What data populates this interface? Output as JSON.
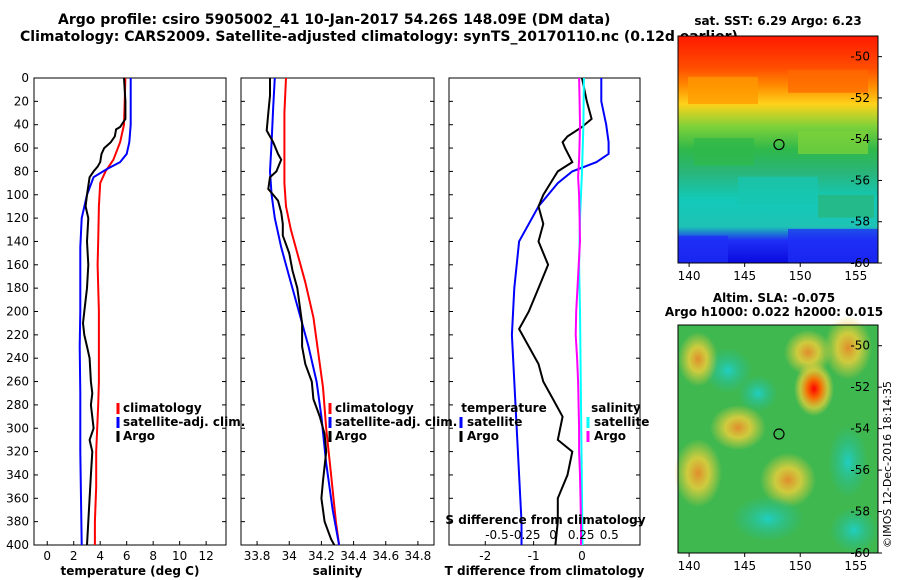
{
  "titles": {
    "line1": "Argo profile: csiro 5905002_41 10-Jan-2017 54.26S 148.09E (DM data)",
    "line2": "Climatology: CARS2009. Satellite-adjusted climatology: synTS_20170110.nc (0.12d earlier)"
  },
  "colors": {
    "climatology": "#ff0000",
    "satellite": "#0000ff",
    "argo": "#000000",
    "sat_diff": "#00ffff",
    "argo_diff": "#ff00ff"
  },
  "chart_data": [
    {
      "type": "line",
      "id": "temperature",
      "xlabel": "temperature (deg C)",
      "xlim": [
        -1,
        13.5
      ],
      "xticks": [
        0,
        2,
        4,
        6,
        8,
        10,
        12
      ],
      "ylim": [
        400,
        0
      ],
      "yticks": [
        0,
        20,
        40,
        60,
        80,
        100,
        120,
        140,
        160,
        180,
        200,
        220,
        240,
        260,
        280,
        300,
        320,
        340,
        360,
        380,
        400
      ],
      "legend": [
        "climatology",
        "satellite-adj. clim.",
        "Argo"
      ],
      "series": [
        {
          "name": "climatology",
          "color": "#ff0000",
          "points": [
            [
              5.9,
              0
            ],
            [
              5.85,
              20
            ],
            [
              5.8,
              40
            ],
            [
              5.5,
              55
            ],
            [
              5.0,
              70
            ],
            [
              4.4,
              80
            ],
            [
              4.0,
              90
            ],
            [
              3.9,
              110
            ],
            [
              3.85,
              140
            ],
            [
              3.8,
              160
            ],
            [
              3.9,
              200
            ],
            [
              3.9,
              260
            ],
            [
              3.85,
              280
            ],
            [
              3.7,
              320
            ],
            [
              3.7,
              350
            ],
            [
              3.6,
              380
            ],
            [
              3.6,
              400
            ]
          ]
        },
        {
          "name": "satellite-adj. clim.",
          "color": "#0000ff",
          "points": [
            [
              6.3,
              0
            ],
            [
              6.3,
              20
            ],
            [
              6.3,
              40
            ],
            [
              6.2,
              55
            ],
            [
              6.0,
              65
            ],
            [
              5.5,
              72
            ],
            [
              4.5,
              78
            ],
            [
              3.5,
              85
            ],
            [
              3.0,
              100
            ],
            [
              2.6,
              120
            ],
            [
              2.5,
              145
            ],
            [
              2.5,
              200
            ],
            [
              2.45,
              230
            ],
            [
              2.5,
              270
            ],
            [
              2.5,
              320
            ],
            [
              2.55,
              360
            ],
            [
              2.6,
              400
            ]
          ]
        },
        {
          "name": "Argo",
          "color": "#000000",
          "points": [
            [
              5.8,
              0
            ],
            [
              5.9,
              20
            ],
            [
              5.9,
              35
            ],
            [
              5.5,
              42
            ],
            [
              5.2,
              44
            ],
            [
              5.1,
              50
            ],
            [
              4.8,
              55
            ],
            [
              4.3,
              60
            ],
            [
              4.1,
              65
            ],
            [
              4.0,
              72
            ],
            [
              3.8,
              76
            ],
            [
              3.5,
              80
            ],
            [
              3.2,
              85
            ],
            [
              3.0,
              100
            ],
            [
              2.9,
              110
            ],
            [
              3.1,
              120
            ],
            [
              3.0,
              140
            ],
            [
              3.1,
              160
            ],
            [
              3.0,
              180
            ],
            [
              2.8,
              200
            ],
            [
              2.7,
              210
            ],
            [
              2.8,
              220
            ],
            [
              3.0,
              230
            ],
            [
              3.2,
              240
            ],
            [
              3.3,
              260
            ],
            [
              3.4,
              270
            ],
            [
              3.3,
              280
            ],
            [
              3.5,
              300
            ],
            [
              3.2,
              310
            ],
            [
              3.4,
              320
            ],
            [
              3.3,
              340
            ],
            [
              3.2,
              360
            ],
            [
              3.1,
              380
            ],
            [
              3.0,
              400
            ]
          ]
        }
      ]
    },
    {
      "type": "line",
      "id": "salinity",
      "xlabel": "salinity",
      "xlim": [
        33.7,
        34.9
      ],
      "xticks": [
        33.8,
        34,
        34.2,
        34.4,
        34.6,
        34.8
      ],
      "ylim": [
        400,
        0
      ],
      "legend": [
        "climatology",
        "satellite-adj. clim.",
        "Argo"
      ],
      "series": [
        {
          "name": "climatology",
          "color": "#ff0000",
          "points": [
            [
              33.98,
              0
            ],
            [
              33.97,
              30
            ],
            [
              33.97,
              60
            ],
            [
              33.97,
              90
            ],
            [
              33.98,
              110
            ],
            [
              34.01,
              130
            ],
            [
              34.05,
              150
            ],
            [
              34.1,
              175
            ],
            [
              34.15,
              205
            ],
            [
              34.18,
              235
            ],
            [
              34.21,
              265
            ],
            [
              34.23,
              300
            ],
            [
              34.26,
              340
            ],
            [
              34.29,
              380
            ],
            [
              34.31,
              400
            ]
          ]
        },
        {
          "name": "satellite-adj. clim.",
          "color": "#0000ff",
          "points": [
            [
              33.91,
              0
            ],
            [
              33.9,
              25
            ],
            [
              33.89,
              55
            ],
            [
              33.88,
              80
            ],
            [
              33.89,
              100
            ],
            [
              33.91,
              120
            ],
            [
              33.95,
              145
            ],
            [
              34.0,
              170
            ],
            [
              34.06,
              200
            ],
            [
              34.12,
              230
            ],
            [
              34.17,
              260
            ],
            [
              34.2,
              290
            ],
            [
              34.23,
              330
            ],
            [
              34.27,
              370
            ],
            [
              34.31,
              400
            ]
          ]
        },
        {
          "name": "Argo",
          "color": "#000000",
          "points": [
            [
              33.88,
              0
            ],
            [
              33.88,
              15
            ],
            [
              33.87,
              30
            ],
            [
              33.86,
              45
            ],
            [
              33.9,
              55
            ],
            [
              33.93,
              65
            ],
            [
              33.95,
              70
            ],
            [
              33.92,
              80
            ],
            [
              33.88,
              85
            ],
            [
              33.87,
              95
            ],
            [
              33.93,
              105
            ],
            [
              33.95,
              115
            ],
            [
              33.96,
              125
            ],
            [
              33.96,
              135
            ],
            [
              34.0,
              150
            ],
            [
              34.02,
              165
            ],
            [
              34.05,
              180
            ],
            [
              34.06,
              190
            ],
            [
              34.08,
              210
            ],
            [
              34.08,
              230
            ],
            [
              34.1,
              245
            ],
            [
              34.14,
              260
            ],
            [
              34.15,
              275
            ],
            [
              34.19,
              290
            ],
            [
              34.22,
              305
            ],
            [
              34.23,
              320
            ],
            [
              34.21,
              345
            ],
            [
              34.2,
              360
            ],
            [
              34.22,
              380
            ],
            [
              34.26,
              395
            ],
            [
              34.28,
              400
            ]
          ]
        }
      ]
    },
    {
      "type": "line",
      "id": "difference",
      "xlabel": "T difference from climatology",
      "xlabel_top": "S difference from climatology",
      "xlim": [
        -2.75,
        1.2
      ],
      "xticks": [
        -2,
        -1,
        0
      ],
      "xticks_top": [
        -0.5,
        -0.25,
        0,
        0.25,
        0.5
      ],
      "ylim": [
        400,
        0
      ],
      "legend_left_title": "temperature",
      "legend_left": [
        "satellite",
        "Argo"
      ],
      "legend_right_title": "salinity",
      "legend_right": [
        "satellite",
        "Argo"
      ],
      "series": [
        {
          "name": "T satellite",
          "color": "#0000ff",
          "points": [
            [
              0.4,
              0
            ],
            [
              0.4,
              20
            ],
            [
              0.5,
              40
            ],
            [
              0.55,
              55
            ],
            [
              0.55,
              65
            ],
            [
              0.3,
              72
            ],
            [
              -0.2,
              80
            ],
            [
              -0.5,
              90
            ],
            [
              -0.9,
              110
            ],
            [
              -1.3,
              140
            ],
            [
              -1.4,
              180
            ],
            [
              -1.45,
              220
            ],
            [
              -1.4,
              260
            ],
            [
              -1.35,
              300
            ],
            [
              -1.3,
              340
            ],
            [
              -1.25,
              380
            ],
            [
              -1.25,
              400
            ]
          ]
        },
        {
          "name": "T Argo",
          "color": "#000000",
          "points": [
            [
              0.0,
              0
            ],
            [
              0.1,
              20
            ],
            [
              0.2,
              35
            ],
            [
              0.0,
              42
            ],
            [
              -0.3,
              50
            ],
            [
              -0.4,
              55
            ],
            [
              -0.35,
              60
            ],
            [
              -0.2,
              72
            ],
            [
              -0.5,
              80
            ],
            [
              -0.65,
              90
            ],
            [
              -0.8,
              100
            ],
            [
              -0.9,
              110
            ],
            [
              -0.8,
              125
            ],
            [
              -0.9,
              140
            ],
            [
              -0.7,
              160
            ],
            [
              -0.9,
              180
            ],
            [
              -1.1,
              200
            ],
            [
              -1.3,
              215
            ],
            [
              -1.1,
              230
            ],
            [
              -0.9,
              245
            ],
            [
              -0.8,
              260
            ],
            [
              -0.6,
              275
            ],
            [
              -0.4,
              290
            ],
            [
              -0.5,
              310
            ],
            [
              -0.2,
              320
            ],
            [
              -0.3,
              340
            ],
            [
              -0.5,
              360
            ],
            [
              -0.5,
              380
            ],
            [
              -0.55,
              400
            ]
          ]
        },
        {
          "name": "S satellite",
          "color": "#00ffff",
          "points": [
            [
              0.04,
              0
            ],
            [
              0.03,
              40
            ],
            [
              0.0,
              80
            ],
            [
              -0.04,
              120
            ],
            [
              -0.06,
              160
            ],
            [
              -0.04,
              200
            ],
            [
              -0.03,
              240
            ],
            [
              -0.02,
              280
            ],
            [
              -0.01,
              320
            ],
            [
              0.0,
              360
            ],
            [
              0.01,
              400
            ]
          ]
        },
        {
          "name": "S Argo",
          "color": "#ff00ff",
          "points": [
            [
              -0.06,
              0
            ],
            [
              -0.05,
              20
            ],
            [
              -0.04,
              40
            ],
            [
              -0.05,
              55
            ],
            [
              -0.06,
              70
            ],
            [
              -0.08,
              85
            ],
            [
              -0.06,
              100
            ],
            [
              -0.05,
              120
            ],
            [
              -0.04,
              140
            ],
            [
              -0.08,
              170
            ],
            [
              -0.12,
              200
            ],
            [
              -0.13,
              220
            ],
            [
              -0.1,
              240
            ],
            [
              -0.08,
              260
            ],
            [
              -0.07,
              280
            ],
            [
              -0.06,
              300
            ],
            [
              -0.06,
              320
            ],
            [
              -0.04,
              340
            ],
            [
              -0.03,
              360
            ],
            [
              -0.02,
              380
            ],
            [
              -0.02,
              400
            ]
          ]
        }
      ]
    },
    {
      "type": "heatmap",
      "id": "sst_map",
      "title": "sat. SST: 6.29 Argo: 6.23",
      "xlim": [
        139,
        157
      ],
      "xticks": [
        140,
        145,
        150,
        155
      ],
      "ylim": [
        -60,
        -49
      ],
      "yticks": [
        -60,
        -58,
        -56,
        -54,
        -52,
        -50
      ],
      "marker": {
        "lon": 148.09,
        "lat": -54.26
      }
    },
    {
      "type": "heatmap",
      "id": "sla_map",
      "title_line1": "Altim. SLA: -0.075",
      "title_line2": "Argo h1000: 0.022 h2000: 0.015",
      "xlim": [
        139,
        157
      ],
      "xticks": [
        140,
        145,
        150,
        155
      ],
      "ylim": [
        -60,
        -49
      ],
      "yticks": [
        -60,
        -58,
        -56,
        -54,
        -52,
        -50
      ],
      "marker": {
        "lon": 148.09,
        "lat": -54.26
      }
    }
  ],
  "watermark": "©IMOS 12-Dec-2016 18:14:35"
}
